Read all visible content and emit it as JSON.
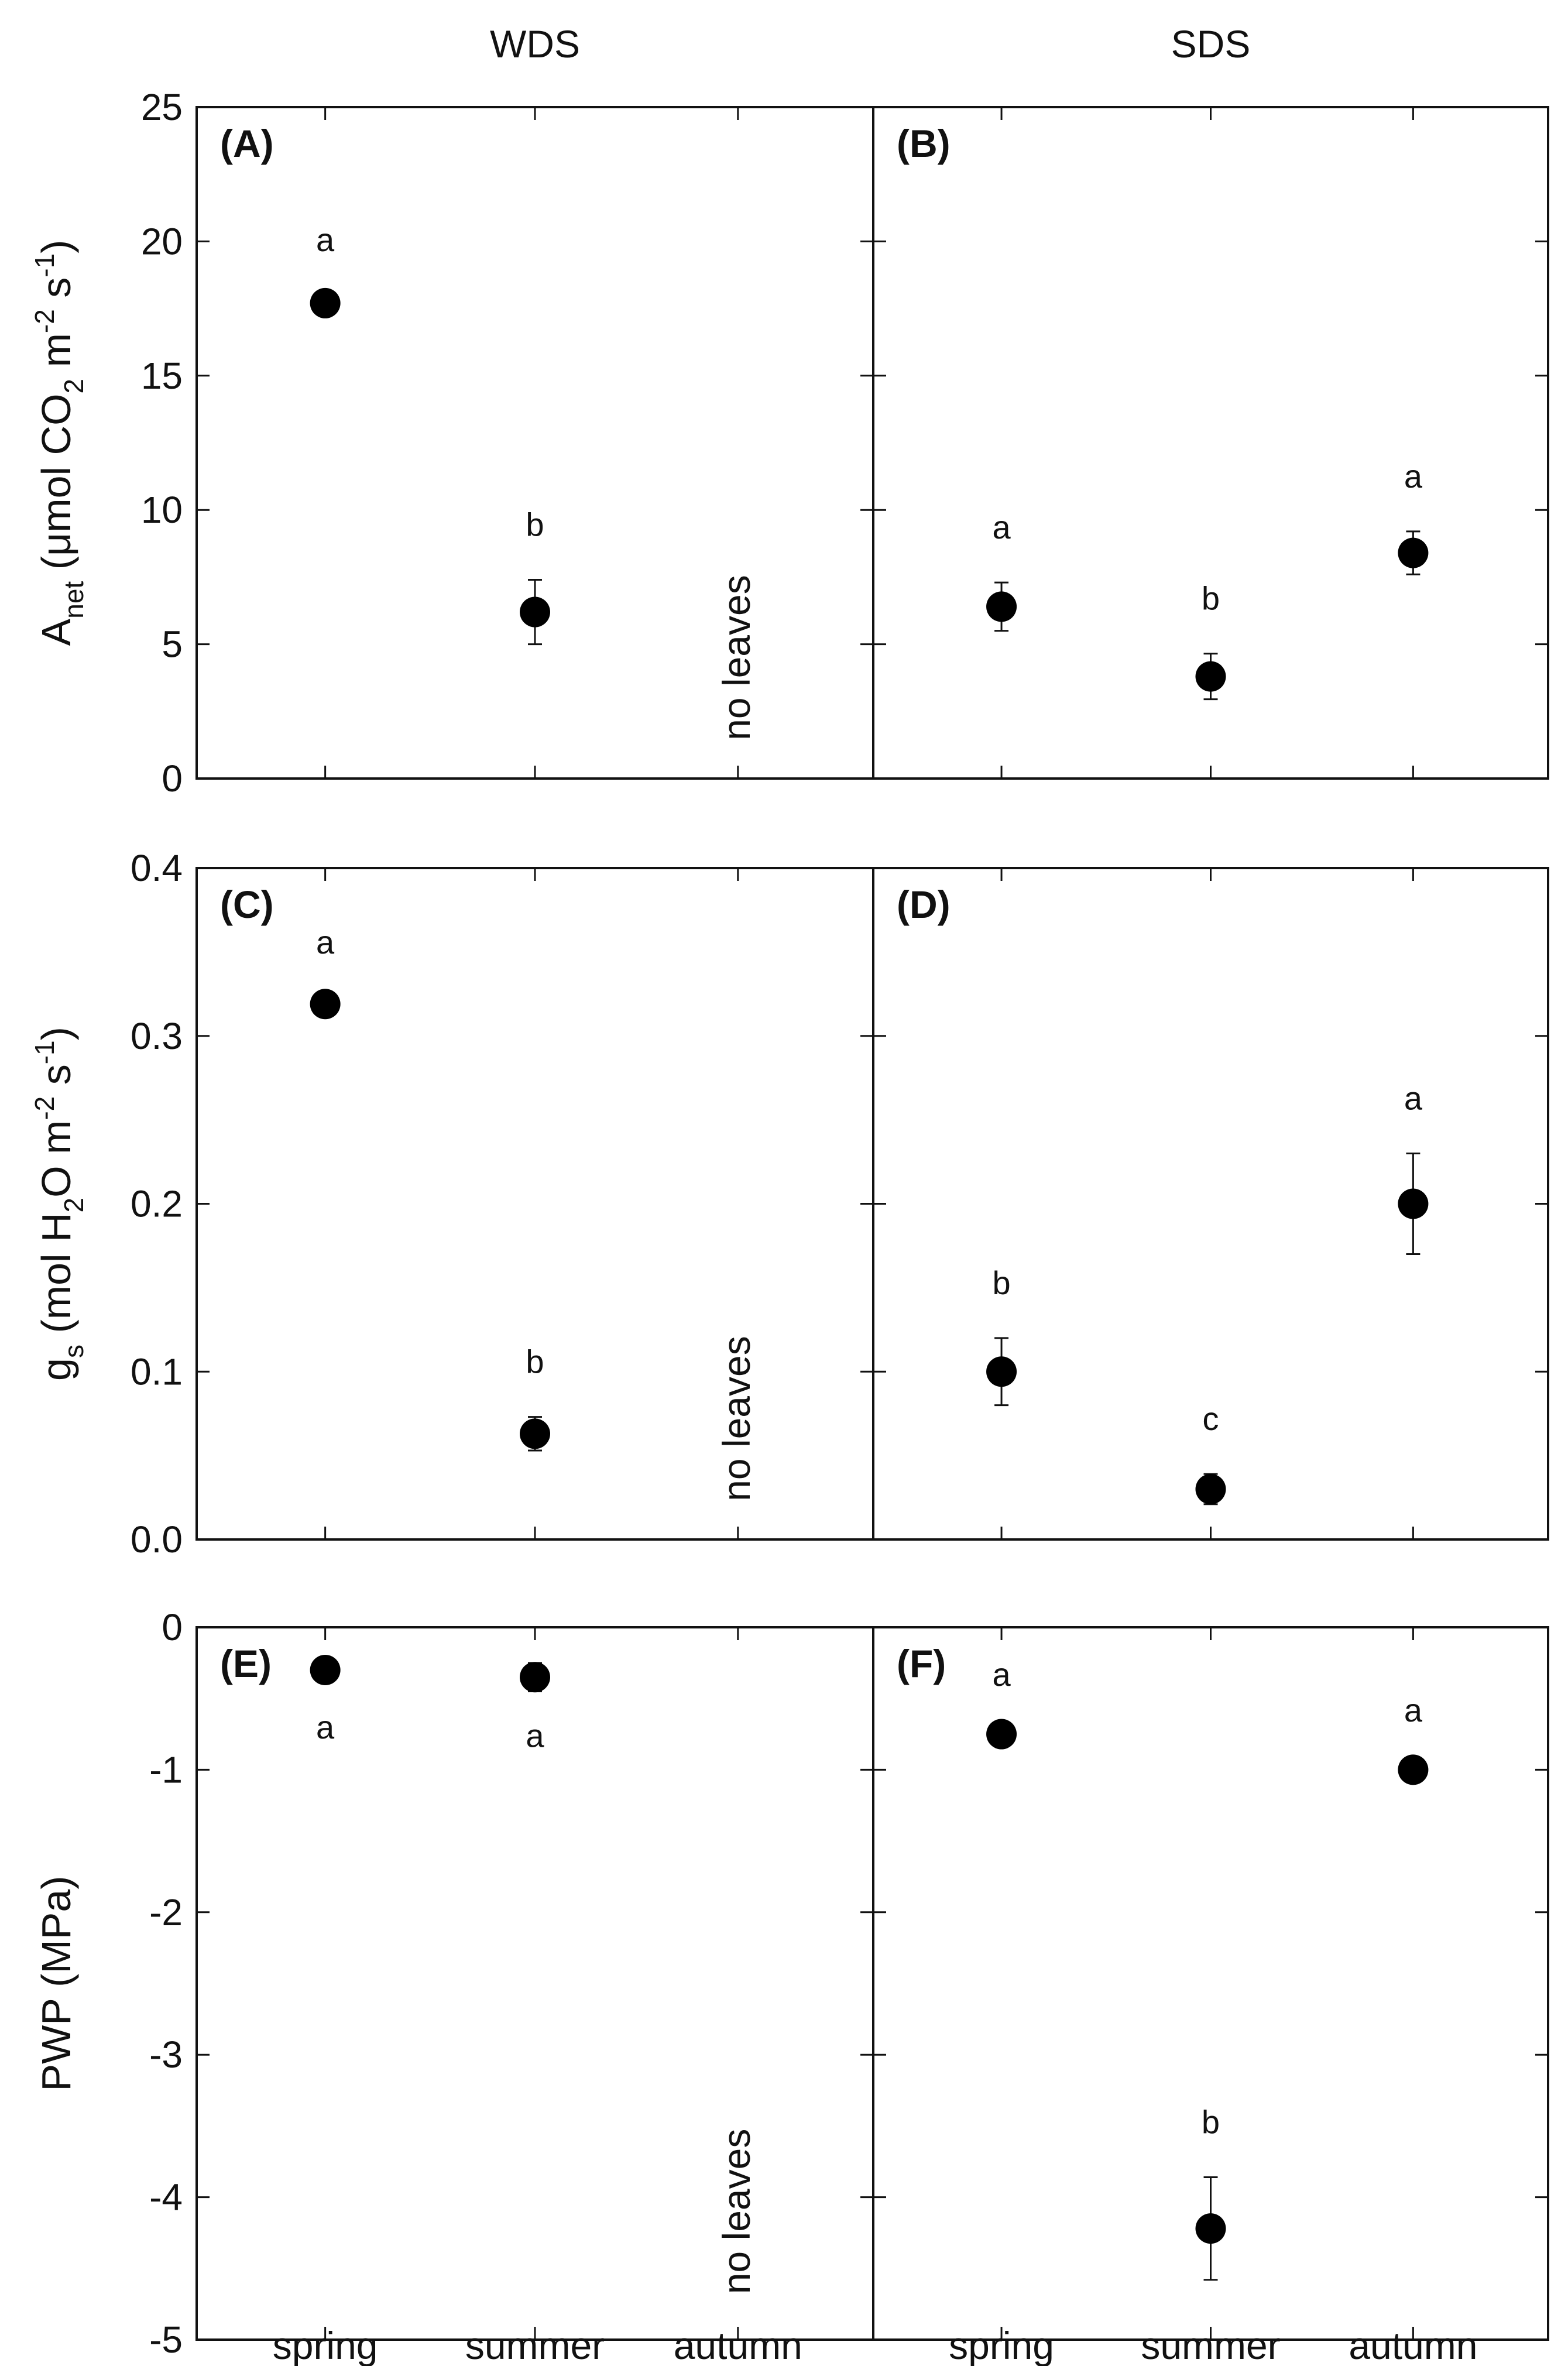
{
  "chart_data": {
    "type": "scatter",
    "column_titles": [
      "WDS",
      "SDS"
    ],
    "categories": [
      "spring",
      "summer",
      "autumn"
    ],
    "rows": [
      {
        "ylabel_main": "A",
        "ylabel_sub": "net",
        "ylabel_rest1": " (μmol CO",
        "ylabel_sub2": "2",
        "ylabel_rest2": " m",
        "ylabel_sup1": "-2",
        "ylabel_rest3": " s",
        "ylabel_sup2": "-1",
        "ylabel_rest4": ")",
        "ylim": [
          0,
          25
        ],
        "yticks": [
          "0",
          "5",
          "10",
          "15",
          "20",
          "25"
        ],
        "tick_values": [
          0,
          5,
          10,
          15,
          20,
          25
        ],
        "panels": [
          {
            "label": "(A)",
            "points": [
              {
                "x": "spring",
                "y": 17.7,
                "err": 0.3,
                "letter": "a",
                "letter_pos": "above"
              },
              {
                "x": "summer",
                "y": 6.2,
                "err": 1.2,
                "letter": "b",
                "letter_pos": "above"
              }
            ],
            "note": "no leaves"
          },
          {
            "label": "(B)",
            "points": [
              {
                "x": "spring",
                "y": 6.4,
                "err": 0.9,
                "letter": "a",
                "letter_pos": "above"
              },
              {
                "x": "summer",
                "y": 3.8,
                "err": 0.85,
                "letter": "b",
                "letter_pos": "above"
              },
              {
                "x": "autumn",
                "y": 8.4,
                "err": 0.8,
                "letter": "a",
                "letter_pos": "above"
              }
            ],
            "note": ""
          }
        ]
      },
      {
        "ylabel_main": "g",
        "ylabel_sub": "s",
        "ylabel_rest1": " (mol H",
        "ylabel_sub2": "2",
        "ylabel_rest2": "O m",
        "ylabel_sup1": "-2",
        "ylabel_rest3": " s",
        "ylabel_sup2": "-1",
        "ylabel_rest4": ")",
        "ylim": [
          0,
          0.4
        ],
        "yticks": [
          "0.0",
          "0.1",
          "0.2",
          "0.3",
          "0.4"
        ],
        "tick_values": [
          0,
          0.1,
          0.2,
          0.3,
          0.4
        ],
        "panels": [
          {
            "label": "(C)",
            "points": [
              {
                "x": "spring",
                "y": 0.319,
                "err": 0.004,
                "letter": "a",
                "letter_pos": "above"
              },
              {
                "x": "summer",
                "y": 0.063,
                "err": 0.01,
                "letter": "b",
                "letter_pos": "above"
              }
            ],
            "note": "no leaves"
          },
          {
            "label": "(D)",
            "points": [
              {
                "x": "spring",
                "y": 0.1,
                "err": 0.02,
                "letter": "b",
                "letter_pos": "above"
              },
              {
                "x": "summer",
                "y": 0.03,
                "err": 0.009,
                "letter": "c",
                "letter_pos": "above"
              },
              {
                "x": "autumn",
                "y": 0.2,
                "err": 0.03,
                "letter": "a",
                "letter_pos": "above"
              }
            ],
            "note": ""
          }
        ]
      },
      {
        "ylabel_plain": "PWP (MPa)",
        "ylim": [
          -5,
          0
        ],
        "yticks": [
          "-5",
          "-4",
          "-3",
          "-2",
          "-1",
          "0"
        ],
        "tick_values": [
          -5,
          -4,
          -3,
          -2,
          -1,
          0
        ],
        "panels": [
          {
            "label": "(E)",
            "points": [
              {
                "x": "spring",
                "y": -0.3,
                "err": 0.09,
                "letter": "a",
                "letter_pos": "below"
              },
              {
                "x": "summer",
                "y": -0.35,
                "err": 0.1,
                "letter": "a",
                "letter_pos": "below"
              }
            ],
            "note": "no leaves"
          },
          {
            "label": "(F)",
            "points": [
              {
                "x": "spring",
                "y": -0.75,
                "err": 0.03,
                "letter": "a",
                "letter_pos": "above"
              },
              {
                "x": "summer",
                "y": -4.22,
                "err": 0.36,
                "letter": "b",
                "letter_pos": "above"
              },
              {
                "x": "autumn",
                "y": -1.0,
                "err": 0.03,
                "letter": "a",
                "letter_pos": "above"
              }
            ],
            "note": ""
          }
        ]
      }
    ]
  }
}
